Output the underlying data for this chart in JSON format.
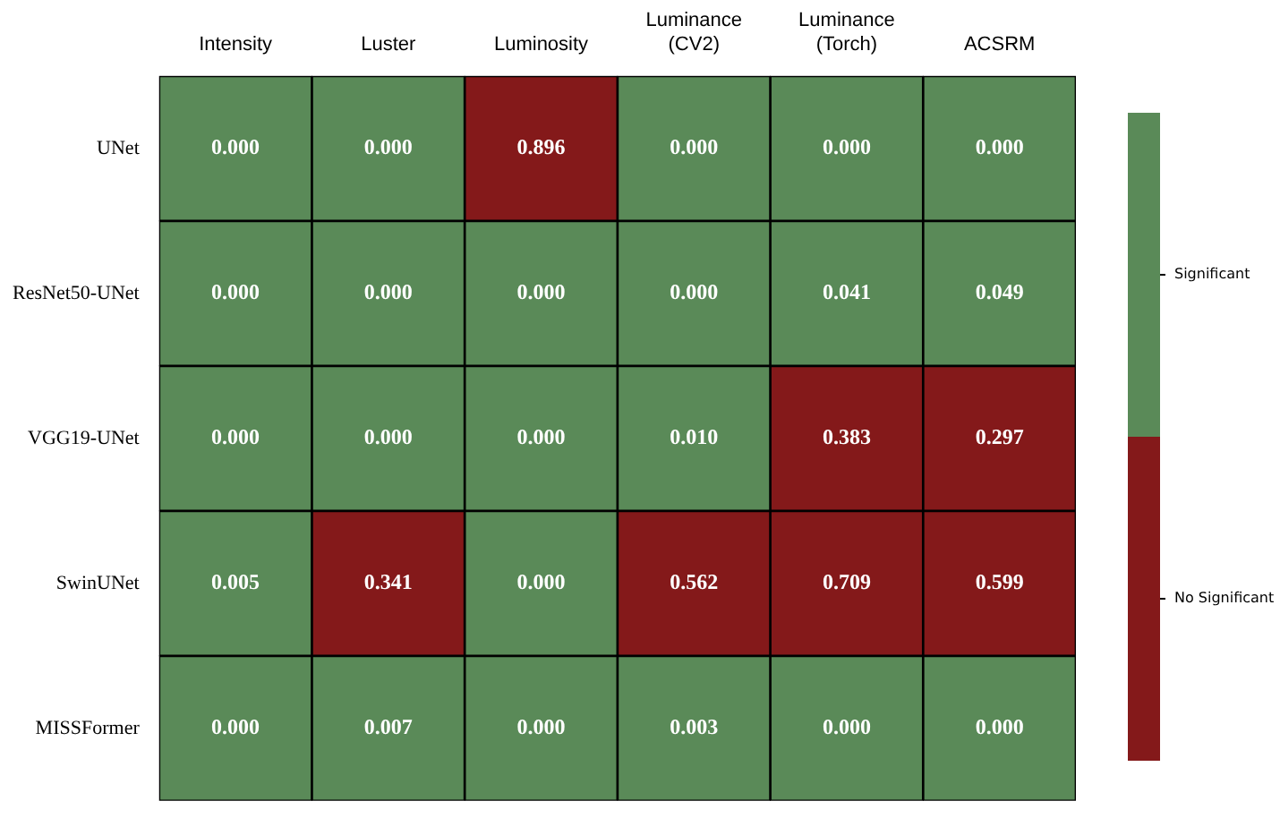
{
  "chart_data": {
    "type": "heatmap",
    "categories": [
      "Intensity",
      "Luster",
      "Luminosity",
      "Luminance (CV2)",
      "Luminance (Torch)",
      "ACSRM"
    ],
    "y_categories": [
      "UNet",
      "ResNet50-UNet",
      "VGG19-UNet",
      "SwinUNet",
      "MISSFormer"
    ],
    "cells": [
      [
        0.0,
        0.0,
        0.896,
        0.0,
        0.0,
        0.0
      ],
      [
        0.0,
        0.0,
        0.0,
        0.0,
        0.041,
        0.049
      ],
      [
        0.0,
        0.0,
        0.0,
        0.01,
        0.383,
        0.297
      ],
      [
        0.005,
        0.341,
        0.0,
        0.562,
        0.709,
        0.599
      ],
      [
        0.0,
        0.007,
        0.0,
        0.003,
        0.0,
        0.0
      ]
    ],
    "cell_labels": [
      [
        "0.000",
        "0.000",
        "0.896",
        "0.000",
        "0.000",
        "0.000"
      ],
      [
        "0.000",
        "0.000",
        "0.000",
        "0.000",
        "0.041",
        "0.049"
      ],
      [
        "0.000",
        "0.000",
        "0.000",
        "0.010",
        "0.383",
        "0.297"
      ],
      [
        "0.005",
        "0.341",
        "0.000",
        "0.562",
        "0.709",
        "0.599"
      ],
      [
        "0.000",
        "0.007",
        "0.000",
        "0.003",
        "0.000",
        "0.000"
      ]
    ],
    "colors": [
      [
        "#5a8a58",
        "#5a8a58",
        "#84191a",
        "#5a8a58",
        "#5a8a58",
        "#5a8a58"
      ],
      [
        "#5a8a58",
        "#5a8a58",
        "#5a8a58",
        "#5a8a58",
        "#5a8a58",
        "#5a8a58"
      ],
      [
        "#5a8a58",
        "#5a8a58",
        "#5a8a58",
        "#5a8a58",
        "#84191a",
        "#84191a"
      ],
      [
        "#5a8a58",
        "#84191a",
        "#5a8a58",
        "#84191a",
        "#84191a",
        "#84191a"
      ],
      [
        "#5a8a58",
        "#5a8a58",
        "#5a8a58",
        "#5a8a58",
        "#5a8a58",
        "#5a8a58"
      ]
    ],
    "annotations": [
      "Significant",
      "No Significant"
    ]
  }
}
